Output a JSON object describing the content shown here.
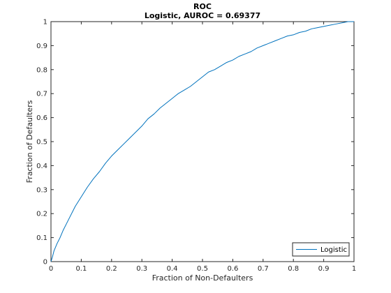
{
  "chart_data": {
    "type": "line",
    "title": "ROC",
    "subtitle": "Logistic, AUROC = 0.69377",
    "xlabel": "Fraction of Non-Defaulters",
    "ylabel": "Fraction of Defaulters",
    "xlim": [
      0,
      1
    ],
    "ylim": [
      0,
      1
    ],
    "xticks": [
      "0",
      "0.1",
      "0.2",
      "0.3",
      "0.4",
      "0.5",
      "0.6",
      "0.7",
      "0.8",
      "0.9",
      "1"
    ],
    "yticks": [
      "0",
      "0.1",
      "0.2",
      "0.3",
      "0.4",
      "0.5",
      "0.6",
      "0.7",
      "0.8",
      "0.9",
      "1"
    ],
    "grid": false,
    "legend_position": "bottom-right",
    "series": [
      {
        "name": "Logistic",
        "color": "#0072bd",
        "x": [
          0,
          0.005,
          0.01,
          0.02,
          0.03,
          0.04,
          0.05,
          0.06,
          0.07,
          0.08,
          0.09,
          0.1,
          0.12,
          0.14,
          0.16,
          0.18,
          0.2,
          0.22,
          0.24,
          0.26,
          0.28,
          0.3,
          0.32,
          0.34,
          0.36,
          0.38,
          0.4,
          0.42,
          0.44,
          0.46,
          0.48,
          0.5,
          0.52,
          0.54,
          0.56,
          0.58,
          0.6,
          0.62,
          0.64,
          0.66,
          0.68,
          0.7,
          0.72,
          0.74,
          0.76,
          0.78,
          0.8,
          0.82,
          0.84,
          0.86,
          0.88,
          0.9,
          0.92,
          0.94,
          0.96,
          0.98,
          1.0
        ],
        "y": [
          0,
          0.02,
          0.045,
          0.075,
          0.1,
          0.13,
          0.155,
          0.18,
          0.205,
          0.23,
          0.25,
          0.27,
          0.31,
          0.345,
          0.375,
          0.41,
          0.44,
          0.465,
          0.49,
          0.515,
          0.54,
          0.565,
          0.595,
          0.615,
          0.64,
          0.66,
          0.68,
          0.7,
          0.715,
          0.73,
          0.75,
          0.77,
          0.79,
          0.8,
          0.815,
          0.83,
          0.84,
          0.855,
          0.865,
          0.875,
          0.89,
          0.9,
          0.91,
          0.92,
          0.93,
          0.94,
          0.945,
          0.955,
          0.96,
          0.97,
          0.975,
          0.98,
          0.985,
          0.99,
          0.995,
          1.0,
          1.0
        ]
      }
    ]
  }
}
